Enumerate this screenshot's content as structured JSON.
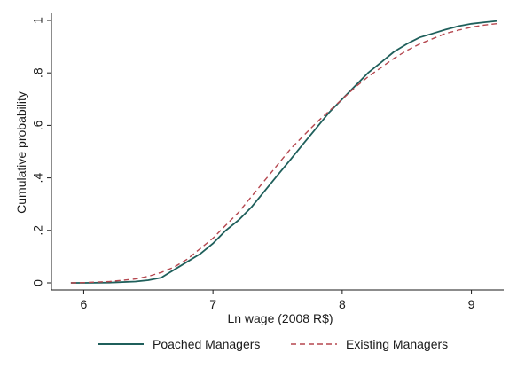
{
  "chart_data": {
    "type": "line",
    "title": "",
    "xlabel": "Ln wage (2008 R$)",
    "ylabel": "Cumulative probability",
    "xlim": [
      5.75,
      9.25
    ],
    "ylim": [
      0,
      1
    ],
    "xticks": [
      6,
      7,
      8,
      9
    ],
    "xtick_labels": [
      "6",
      "7",
      "8",
      "9"
    ],
    "yticks": [
      0,
      0.2,
      0.4,
      0.6,
      0.8,
      1
    ],
    "ytick_labels": [
      "0",
      ".2",
      ".4",
      ".6",
      ".8",
      "1"
    ],
    "grid": false,
    "legend_position": "bottom",
    "series": [
      {
        "name": "Poached Managers",
        "color": "#1f5f5b",
        "style": "solid",
        "x": [
          5.9,
          6.0,
          6.2,
          6.4,
          6.5,
          6.6,
          6.65,
          6.7,
          6.8,
          6.9,
          7.0,
          7.1,
          7.2,
          7.3,
          7.4,
          7.5,
          7.6,
          7.7,
          7.8,
          7.9,
          8.0,
          8.1,
          8.2,
          8.3,
          8.4,
          8.5,
          8.6,
          8.7,
          8.8,
          8.9,
          9.0,
          9.1,
          9.2
        ],
        "y": [
          0.0,
          0.0,
          0.001,
          0.005,
          0.01,
          0.02,
          0.035,
          0.05,
          0.08,
          0.11,
          0.15,
          0.2,
          0.24,
          0.29,
          0.35,
          0.41,
          0.47,
          0.53,
          0.59,
          0.65,
          0.7,
          0.75,
          0.8,
          0.84,
          0.88,
          0.91,
          0.935,
          0.95,
          0.965,
          0.978,
          0.987,
          0.993,
          0.998
        ]
      },
      {
        "name": "Existing Managers",
        "color": "#b5474f",
        "style": "dashed",
        "x": [
          5.9,
          6.0,
          6.2,
          6.4,
          6.5,
          6.6,
          6.7,
          6.8,
          6.9,
          7.0,
          7.1,
          7.2,
          7.3,
          7.4,
          7.5,
          7.6,
          7.7,
          7.8,
          7.9,
          8.0,
          8.1,
          8.2,
          8.3,
          8.4,
          8.5,
          8.6,
          8.7,
          8.8,
          8.9,
          9.0,
          9.1,
          9.2
        ],
        "y": [
          0.0,
          0.001,
          0.005,
          0.015,
          0.025,
          0.04,
          0.06,
          0.09,
          0.13,
          0.17,
          0.22,
          0.27,
          0.33,
          0.39,
          0.45,
          0.51,
          0.56,
          0.61,
          0.655,
          0.7,
          0.745,
          0.785,
          0.82,
          0.855,
          0.885,
          0.91,
          0.93,
          0.95,
          0.963,
          0.974,
          0.982,
          0.988
        ]
      }
    ]
  }
}
